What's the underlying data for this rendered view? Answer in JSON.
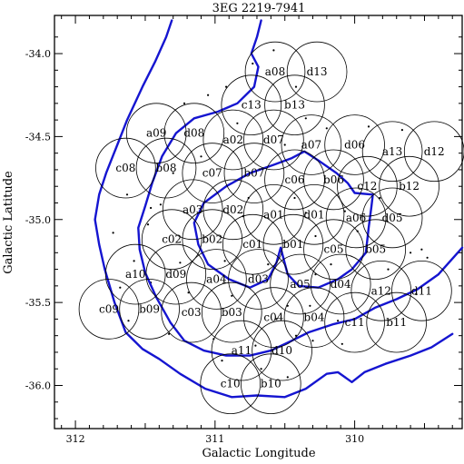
{
  "chart_data": {
    "type": "scatter",
    "title": "3EG 2219-7941",
    "xlabel": "Galactic Longitude",
    "ylabel": "Galactic Latitude",
    "xlim": [
      312.15,
      309.23
    ],
    "ylim": [
      -36.26,
      -33.77
    ],
    "x_ticks": [
      312,
      311,
      310
    ],
    "x_tick_labels": [
      "312",
      "311",
      "310"
    ],
    "y_ticks": [
      -34.0,
      -34.5,
      -35.0,
      -35.5,
      -36.0
    ],
    "y_tick_labels": [
      "-34.0",
      "-34.5",
      "-35.0",
      "-35.5",
      "-36.0"
    ],
    "circle_radius_deg": 0.18,
    "contour_color": "#1515d0",
    "fields": [
      {
        "label": "a08",
        "l": 310.57,
        "b": -34.11
      },
      {
        "label": "d13",
        "l": 310.27,
        "b": -34.11
      },
      {
        "label": "c13",
        "l": 310.74,
        "b": -34.31
      },
      {
        "label": "b13",
        "l": 310.43,
        "b": -34.31
      },
      {
        "label": "a09",
        "l": 311.42,
        "b": -34.48
      },
      {
        "label": "d08",
        "l": 311.15,
        "b": -34.48
      },
      {
        "label": "a02",
        "l": 310.87,
        "b": -34.52
      },
      {
        "label": "d07",
        "l": 310.58,
        "b": -34.52
      },
      {
        "label": "a07",
        "l": 310.31,
        "b": -34.55
      },
      {
        "label": "d06",
        "l": 310.0,
        "b": -34.55
      },
      {
        "label": "a13",
        "l": 309.73,
        "b": -34.59
      },
      {
        "label": "d12",
        "l": 309.43,
        "b": -34.59
      },
      {
        "label": "c08",
        "l": 311.64,
        "b": -34.69
      },
      {
        "label": "b08",
        "l": 311.35,
        "b": -34.69
      },
      {
        "label": "c07",
        "l": 311.02,
        "b": -34.72
      },
      {
        "label": "b07",
        "l": 310.72,
        "b": -34.72
      },
      {
        "label": "c06",
        "l": 310.43,
        "b": -34.76
      },
      {
        "label": "b06",
        "l": 310.15,
        "b": -34.76
      },
      {
        "label": "c12",
        "l": 309.91,
        "b": -34.8
      },
      {
        "label": "b12",
        "l": 309.61,
        "b": -34.8
      },
      {
        "label": "a03",
        "l": 311.16,
        "b": -34.94
      },
      {
        "label": "d02",
        "l": 310.87,
        "b": -34.94
      },
      {
        "label": "a01",
        "l": 310.58,
        "b": -34.97
      },
      {
        "label": "d01",
        "l": 310.29,
        "b": -34.97
      },
      {
        "label": "a06",
        "l": 309.99,
        "b": -34.99
      },
      {
        "label": "d05",
        "l": 309.73,
        "b": -34.99
      },
      {
        "label": "c02",
        "l": 311.31,
        "b": -35.12
      },
      {
        "label": "b02",
        "l": 311.02,
        "b": -35.12
      },
      {
        "label": "c01",
        "l": 310.73,
        "b": -35.15
      },
      {
        "label": "b01",
        "l": 310.44,
        "b": -35.15
      },
      {
        "label": "c05",
        "l": 310.15,
        "b": -35.18
      },
      {
        "label": "b05",
        "l": 309.85,
        "b": -35.18
      },
      {
        "label": "a10",
        "l": 311.57,
        "b": -35.33
      },
      {
        "label": "d09",
        "l": 311.28,
        "b": -35.33
      },
      {
        "label": "a04",
        "l": 310.99,
        "b": -35.36
      },
      {
        "label": "d03",
        "l": 310.69,
        "b": -35.36
      },
      {
        "label": "a05",
        "l": 310.39,
        "b": -35.39
      },
      {
        "label": "d04",
        "l": 310.1,
        "b": -35.39
      },
      {
        "label": "a12",
        "l": 309.81,
        "b": -35.43
      },
      {
        "label": "d11",
        "l": 309.52,
        "b": -35.43
      },
      {
        "label": "c09",
        "l": 311.76,
        "b": -35.54
      },
      {
        "label": "b09",
        "l": 311.47,
        "b": -35.54
      },
      {
        "label": "c03",
        "l": 311.17,
        "b": -35.56
      },
      {
        "label": "b03",
        "l": 310.88,
        "b": -35.56
      },
      {
        "label": "c04",
        "l": 310.58,
        "b": -35.59
      },
      {
        "label": "b04",
        "l": 310.29,
        "b": -35.59
      },
      {
        "label": "c11",
        "l": 310.0,
        "b": -35.62
      },
      {
        "label": "b11",
        "l": 309.7,
        "b": -35.62
      },
      {
        "label": "a11",
        "l": 310.81,
        "b": -35.79
      },
      {
        "label": "d10",
        "l": 310.52,
        "b": -35.79
      },
      {
        "label": "c10",
        "l": 310.89,
        "b": -35.99
      },
      {
        "label": "b10",
        "l": 310.6,
        "b": -35.99
      }
    ],
    "contours": [
      [
        [
          311.31,
          -33.8
        ],
        [
          311.35,
          -33.9
        ],
        [
          311.43,
          -34.05
        ],
        [
          311.52,
          -34.2
        ],
        [
          311.63,
          -34.4
        ],
        [
          311.7,
          -34.55
        ],
        [
          311.78,
          -34.72
        ],
        [
          311.83,
          -34.85
        ],
        [
          311.86,
          -35.0
        ],
        [
          311.83,
          -35.15
        ],
        [
          311.79,
          -35.3
        ],
        [
          311.72,
          -35.5
        ],
        [
          311.64,
          -35.68
        ],
        [
          311.52,
          -35.78
        ],
        [
          311.4,
          -35.84
        ],
        [
          311.25,
          -35.93
        ],
        [
          311.07,
          -36.02
        ],
        [
          310.88,
          -36.07
        ],
        [
          310.7,
          -36.06
        ],
        [
          310.5,
          -36.07
        ],
        [
          310.35,
          -36.02
        ],
        [
          310.2,
          -35.93
        ],
        [
          310.12,
          -35.92
        ],
        [
          310.02,
          -35.98
        ],
        [
          309.93,
          -35.92
        ],
        [
          309.78,
          -35.87
        ],
        [
          309.6,
          -35.82
        ],
        [
          309.45,
          -35.77
        ],
        [
          309.3,
          -35.69
        ]
      ],
      [
        [
          310.67,
          -33.8
        ],
        [
          310.7,
          -33.9
        ],
        [
          310.74,
          -34.0
        ],
        [
          310.69,
          -34.08
        ],
        [
          310.72,
          -34.2
        ],
        [
          310.84,
          -34.3
        ],
        [
          310.98,
          -34.35
        ],
        [
          311.15,
          -34.39
        ],
        [
          311.28,
          -34.48
        ],
        [
          311.38,
          -34.62
        ],
        [
          311.45,
          -34.78
        ],
        [
          311.5,
          -34.92
        ],
        [
          311.55,
          -35.05
        ],
        [
          311.54,
          -35.18
        ],
        [
          311.5,
          -35.32
        ],
        [
          311.42,
          -35.47
        ],
        [
          311.32,
          -35.62
        ],
        [
          311.22,
          -35.73
        ],
        [
          311.08,
          -35.79
        ],
        [
          310.92,
          -35.82
        ],
        [
          310.75,
          -35.82
        ],
        [
          310.6,
          -35.79
        ],
        [
          310.45,
          -35.73
        ],
        [
          310.33,
          -35.68
        ],
        [
          310.15,
          -35.63
        ],
        [
          310.0,
          -35.6
        ],
        [
          309.85,
          -35.53
        ],
        [
          309.7,
          -35.48
        ],
        [
          309.55,
          -35.42
        ],
        [
          309.4,
          -35.33
        ],
        [
          309.23,
          -35.17
        ]
      ],
      [
        [
          310.58,
          -34.67
        ],
        [
          310.75,
          -34.72
        ],
        [
          310.92,
          -34.8
        ],
        [
          311.08,
          -34.9
        ],
        [
          311.15,
          -35.02
        ],
        [
          311.12,
          -35.15
        ],
        [
          311.05,
          -35.27
        ],
        [
          310.9,
          -35.36
        ],
        [
          310.75,
          -35.41
        ],
        [
          310.62,
          -35.36
        ],
        [
          310.56,
          -35.26
        ],
        [
          310.53,
          -35.17
        ],
        [
          310.48,
          -35.33
        ],
        [
          310.4,
          -35.4
        ],
        [
          310.26,
          -35.41
        ],
        [
          310.12,
          -35.36
        ],
        [
          310.02,
          -35.3
        ],
        [
          309.92,
          -35.2
        ],
        [
          309.9,
          -35.05
        ],
        [
          309.88,
          -34.92
        ],
        [
          309.87,
          -34.85
        ],
        [
          310.0,
          -34.84
        ],
        [
          310.05,
          -34.78
        ],
        [
          310.13,
          -34.72
        ],
        [
          310.25,
          -34.65
        ],
        [
          310.36,
          -34.59
        ],
        [
          310.45,
          -34.63
        ],
        [
          310.58,
          -34.67
        ]
      ]
    ],
    "point_sources": [
      [
        311.22,
        -34.3
      ],
      [
        311.05,
        -34.25
      ],
      [
        310.92,
        -34.2
      ],
      [
        310.42,
        -34.2
      ],
      [
        310.2,
        -34.45
      ],
      [
        309.9,
        -34.44
      ],
      [
        309.66,
        -34.46
      ],
      [
        311.63,
        -34.85
      ],
      [
        311.46,
        -34.93
      ],
      [
        311.3,
        -34.72
      ],
      [
        311.86,
        -35.0
      ],
      [
        311.73,
        -35.08
      ],
      [
        311.48,
        -35.03
      ],
      [
        311.39,
        -34.91
      ],
      [
        311.58,
        -35.25
      ],
      [
        311.25,
        -35.26
      ],
      [
        310.93,
        -35.25
      ],
      [
        310.62,
        -35.27
      ],
      [
        310.28,
        -35.33
      ],
      [
        310.17,
        -35.27
      ],
      [
        309.76,
        -35.3
      ],
      [
        309.6,
        -35.2
      ],
      [
        309.52,
        -35.18
      ],
      [
        309.48,
        -35.23
      ],
      [
        309.56,
        -35.45
      ],
      [
        309.4,
        -35.33
      ],
      [
        311.33,
        -35.69
      ],
      [
        311.01,
        -35.72
      ],
      [
        310.71,
        -35.76
      ],
      [
        310.42,
        -35.7
      ],
      [
        310.3,
        -35.73
      ],
      [
        310.12,
        -35.61
      ],
      [
        310.09,
        -35.75
      ],
      [
        310.67,
        -35.9
      ],
      [
        310.48,
        -35.95
      ],
      [
        310.95,
        -35.85
      ],
      [
        310.32,
        -35.52
      ],
      [
        310.56,
        -35.6
      ],
      [
        310.88,
        -35.46
      ],
      [
        311.19,
        -35.44
      ],
      [
        311.46,
        -35.38
      ],
      [
        311.68,
        -35.41
      ],
      [
        310.76,
        -34.87
      ],
      [
        310.43,
        -34.87
      ],
      [
        310.07,
        -34.95
      ],
      [
        309.82,
        -34.87
      ],
      [
        310.35,
        -34.96
      ],
      [
        309.98,
        -35.07
      ],
      [
        310.73,
        -34.06
      ],
      [
        310.58,
        -33.98
      ],
      [
        310.35,
        -34.39
      ],
      [
        310.84,
        -34.42
      ],
      [
        311.1,
        -34.62
      ],
      [
        310.5,
        -34.55
      ],
      [
        310.8,
        -34.98
      ],
      [
        310.28,
        -35.1
      ],
      [
        310.48,
        -35.52
      ],
      [
        311.62,
        -35.61
      ]
    ]
  }
}
